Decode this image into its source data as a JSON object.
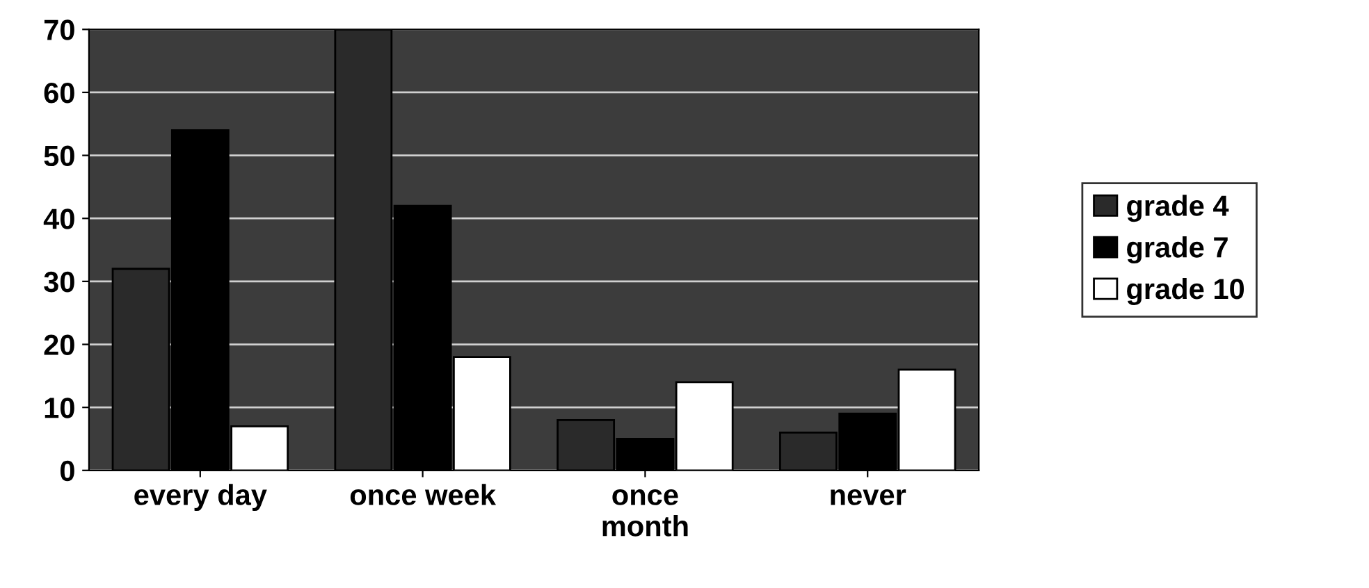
{
  "chart_data": {
    "type": "bar",
    "categories": [
      "every day",
      "once week",
      "once\nmonth",
      "never"
    ],
    "series": [
      {
        "name": "grade 4",
        "color": "#2a2a2a",
        "values": [
          32,
          70,
          8,
          6
        ]
      },
      {
        "name": "grade 7",
        "color": "#000000",
        "values": [
          54,
          42,
          5,
          9
        ]
      },
      {
        "name": "grade 10",
        "color": "#ffffff",
        "values": [
          7,
          18,
          14,
          16
        ]
      }
    ],
    "ylim": [
      0,
      70
    ],
    "yticks": [
      0,
      10,
      20,
      30,
      40,
      50,
      60,
      70
    ],
    "grid": "y",
    "legend": "right"
  }
}
